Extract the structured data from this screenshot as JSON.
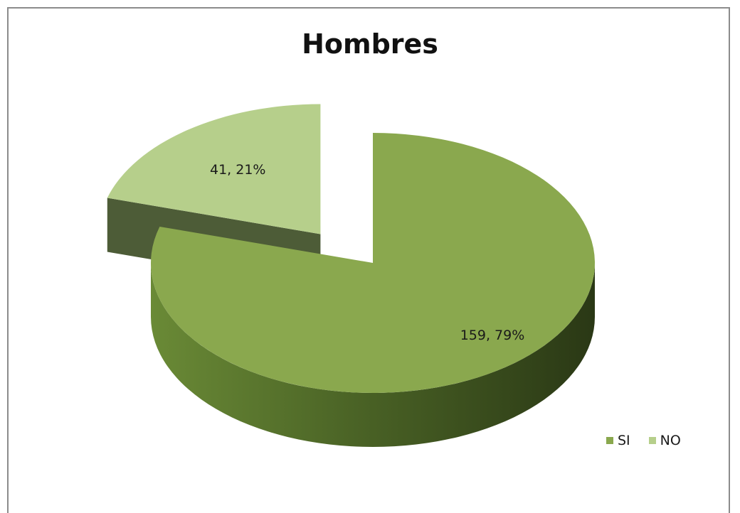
{
  "chart_data": {
    "type": "pie",
    "title": "Hombres",
    "categories": [
      "SI",
      "NO"
    ],
    "values": [
      159,
      41
    ],
    "percentages": [
      79,
      21
    ],
    "data_labels": [
      "159, 79%",
      "41, 21%"
    ],
    "colors": {
      "SI": "#8aa84e",
      "NO": "#b6cf8b"
    },
    "style": "3d-exploded",
    "legend_position": "bottom-right"
  }
}
